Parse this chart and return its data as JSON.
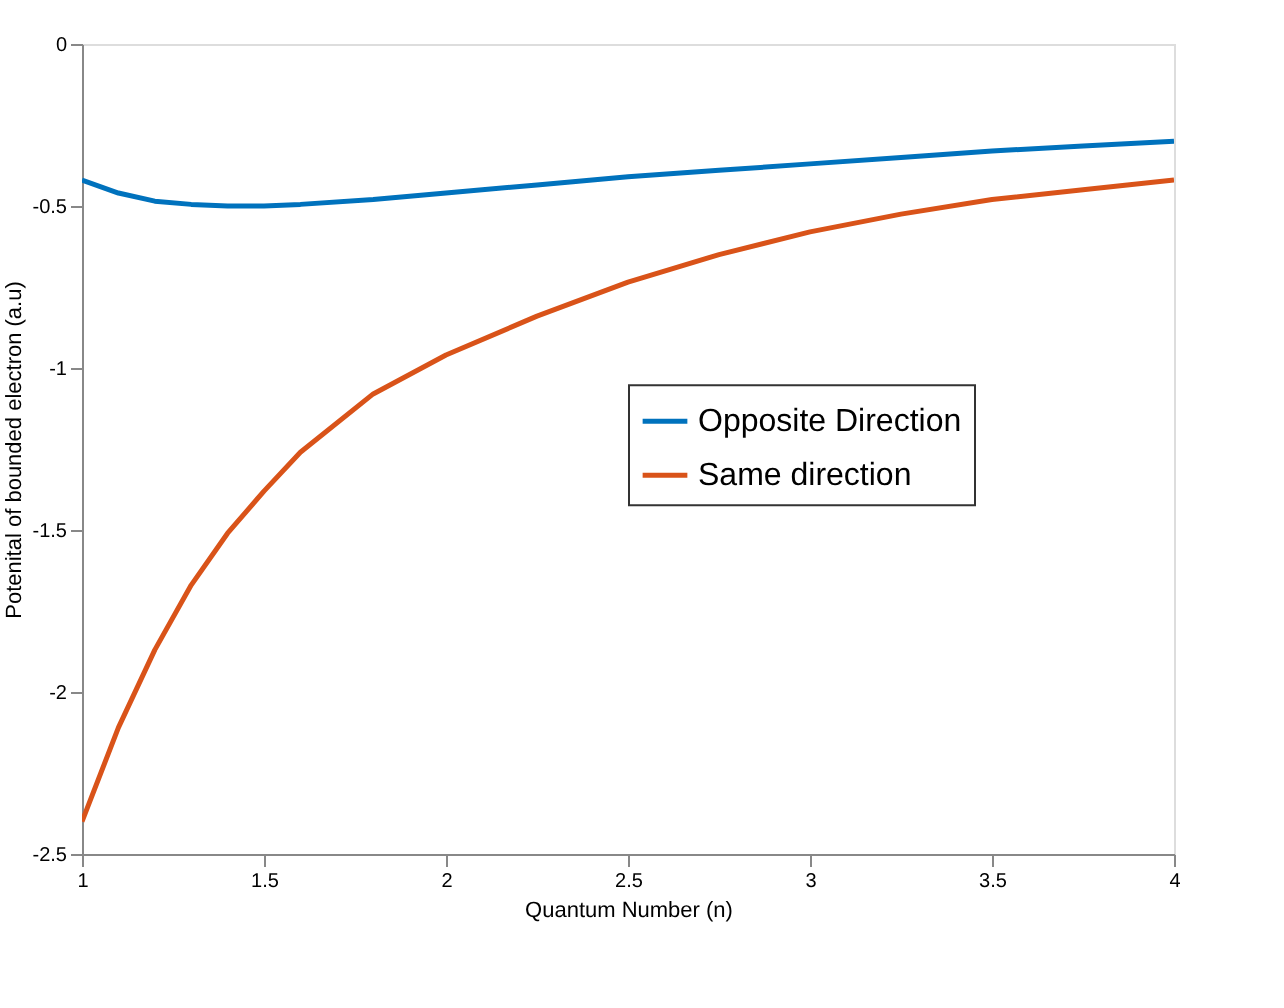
{
  "chart_data": {
    "type": "line",
    "xlabel": "Quantum Number (n)",
    "ylabel": "Potenital of bounded electron (a.u)",
    "xlim": [
      1,
      4
    ],
    "ylim": [
      -2.5,
      0
    ],
    "xticks": [
      1,
      1.5,
      2,
      2.5,
      3,
      3.5,
      4
    ],
    "yticks": [
      -2.5,
      -2,
      -1.5,
      -1,
      -0.5,
      0
    ],
    "x": [
      1,
      1.1,
      1.2,
      1.3,
      1.4,
      1.5,
      1.6,
      1.8,
      2,
      2.25,
      2.5,
      2.75,
      3,
      3.25,
      3.5,
      3.75,
      4
    ],
    "series": [
      {
        "name": "Opposite Direction",
        "color": "#0072bd",
        "values": [
          -0.42,
          -0.46,
          -0.485,
          -0.495,
          -0.5,
          -0.5,
          -0.495,
          -0.48,
          -0.46,
          -0.435,
          -0.41,
          -0.39,
          -0.37,
          -0.35,
          -0.33,
          -0.315,
          -0.3
        ]
      },
      {
        "name": "Same direction",
        "color": "#d95319",
        "values": [
          -2.4,
          -2.11,
          -1.87,
          -1.67,
          -1.51,
          -1.38,
          -1.26,
          -1.08,
          -0.96,
          -0.84,
          -0.735,
          -0.65,
          -0.58,
          -0.525,
          -0.48,
          -0.45,
          -0.42
        ]
      }
    ],
    "legend": "right",
    "grid": false,
    "line_style": "solid",
    "marker": "none"
  }
}
